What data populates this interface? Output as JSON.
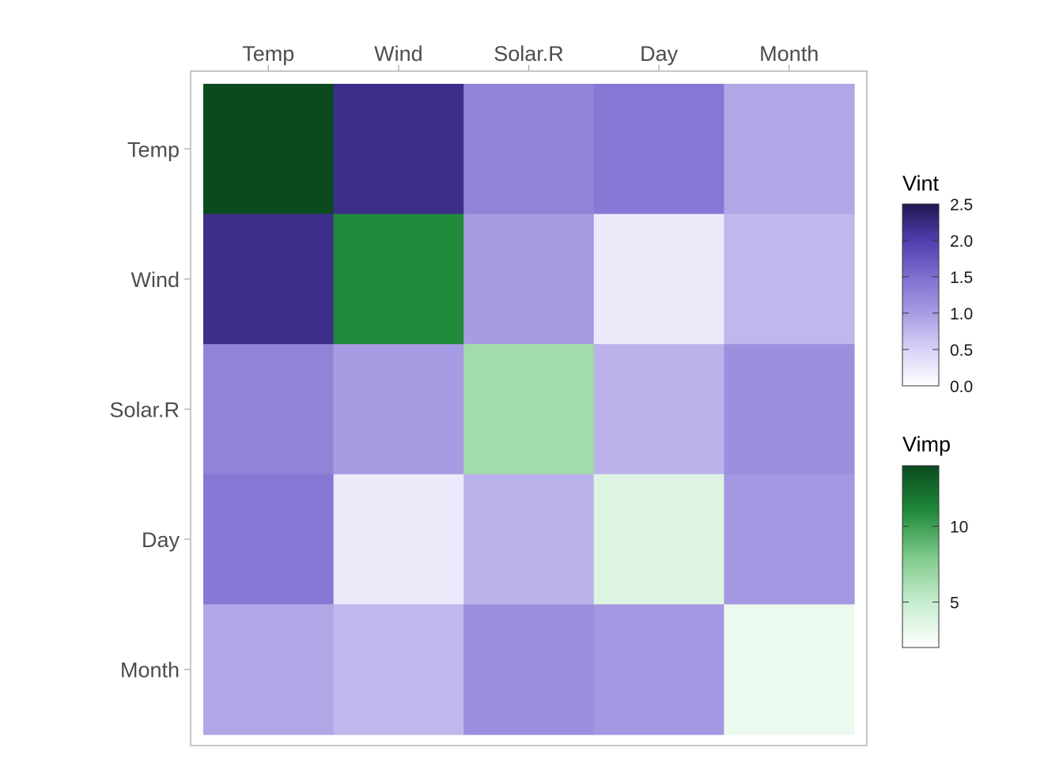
{
  "chart_data": {
    "type": "heatmap",
    "x_categories": [
      "Temp",
      "Wind",
      "Solar.R",
      "Day",
      "Month"
    ],
    "y_categories": [
      "Temp",
      "Wind",
      "Solar.R",
      "Day",
      "Month"
    ],
    "x_axis_position": "top",
    "diagonal_measure": "Vimp",
    "off_diagonal_measure": "Vint",
    "vimp": [
      14.2,
      11.0,
      6.5,
      3.8,
      3.0
    ],
    "vint": [
      [
        null,
        2.2,
        1.28,
        1.4,
        0.9
      ],
      [
        2.2,
        null,
        1.0,
        0.25,
        0.75
      ],
      [
        1.28,
        1.0,
        null,
        0.8,
        1.13
      ],
      [
        1.4,
        0.25,
        0.8,
        null,
        1.05
      ],
      [
        0.9,
        0.75,
        1.13,
        1.05,
        null
      ]
    ],
    "legends": [
      {
        "title": "Vint",
        "ticks": [
          "2.5",
          "2.0",
          "1.5",
          "1.0",
          "0.5",
          "0.0"
        ],
        "tick_values": [
          2.5,
          2.0,
          1.5,
          1.0,
          0.5,
          0.0
        ],
        "range": [
          0,
          2.5
        ],
        "colors": [
          "#ffffff",
          "#d8d2f7",
          "#a79ce3",
          "#7e6fd0",
          "#4f3fae",
          "#1f1651"
        ]
      },
      {
        "title": "Vimp",
        "ticks": [
          "10",
          "5"
        ],
        "tick_values": [
          10,
          5
        ],
        "range": [
          2,
          14
        ],
        "colors": [
          "#ffffff",
          "#c6ecce",
          "#7ec98a",
          "#1f8a3a",
          "#0b4a1f"
        ]
      }
    ],
    "legend_placement": "right",
    "grid": false
  }
}
